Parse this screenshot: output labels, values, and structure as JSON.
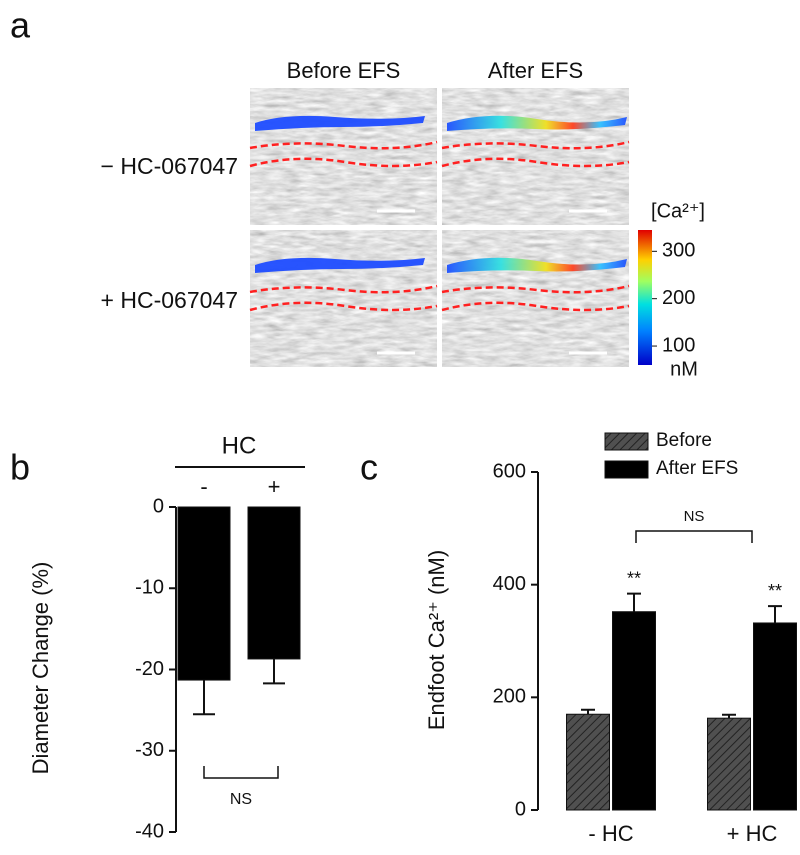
{
  "panel_a": {
    "label": "a",
    "columns": [
      "Before EFS",
      "After EFS"
    ],
    "rows": [
      "− HC-067047",
      "+ HC-067047"
    ],
    "colorbar": {
      "title": "[Ca²⁺]",
      "lim": [
        60,
        345
      ],
      "ticks": [
        100,
        200,
        300
      ],
      "unit": "nM"
    }
  },
  "chart_data": [
    {
      "type": "bar",
      "label": "b",
      "ylabel": "Diameter Change (%)",
      "group_label": "HC",
      "categories": [
        "-",
        "+"
      ],
      "values": [
        -21.3,
        -18.7
      ],
      "errors": [
        4.2,
        3.0
      ],
      "color": "#000000",
      "ylim": [
        -40,
        0
      ],
      "yticks": [
        0,
        -10,
        -20,
        -30,
        -40
      ],
      "annotations": [
        "NS"
      ]
    },
    {
      "type": "bar",
      "label": "c",
      "ylabel": "Endfoot Ca²⁺ (nM)",
      "categories": [
        "- HC",
        "+ HC"
      ],
      "series": [
        {
          "name": "Before",
          "color": "#505050",
          "hatch": true,
          "values": [
            170,
            163
          ],
          "errors": [
            8,
            6
          ]
        },
        {
          "name": "After EFS",
          "color": "#000000",
          "hatch": false,
          "values": [
            352,
            332
          ],
          "errors": [
            32,
            30
          ]
        }
      ],
      "ylim": [
        0,
        600
      ],
      "yticks": [
        0,
        200,
        400,
        600
      ],
      "annotations": [
        "**",
        "**",
        "NS"
      ]
    }
  ]
}
